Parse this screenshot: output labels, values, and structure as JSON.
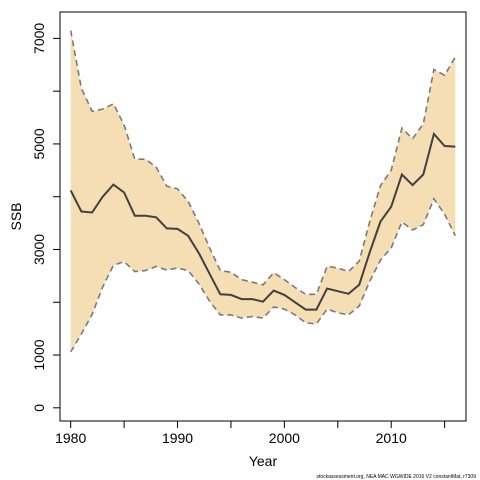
{
  "chart_data": {
    "type": "line",
    "xlabel": "Year",
    "ylabel": "SSB",
    "xlim": [
      1979,
      2017
    ],
    "ylim": [
      -250,
      7500
    ],
    "x_ticks": [
      1980,
      1990,
      2000,
      2010
    ],
    "x_minor_ticks": [
      1985,
      1995,
      2005,
      2015
    ],
    "y_ticks": [
      0,
      1000,
      3000,
      5000,
      7000
    ],
    "y_minor_ticks": [
      2000,
      4000,
      6000
    ],
    "grid": false,
    "credit": "stockassessment.org, NEA MAC WGWIDE 2016 V2 constantMat, r7309",
    "colors": {
      "band": "#f5deb3",
      "band_edge": "#7a7a7a",
      "line": "#404040"
    },
    "x": [
      1980,
      1981,
      1982,
      1983,
      1984,
      1985,
      1986,
      1987,
      1988,
      1989,
      1990,
      1991,
      1992,
      1993,
      1994,
      1995,
      1996,
      1997,
      1998,
      1999,
      2000,
      2001,
      2002,
      2003,
      2004,
      2005,
      2006,
      2007,
      2008,
      2009,
      2010,
      2011,
      2012,
      2013,
      2014,
      2015,
      2016
    ],
    "series": [
      {
        "role": "estimate",
        "values": [
          4120,
          3720,
          3700,
          4000,
          4230,
          4080,
          3640,
          3640,
          3610,
          3400,
          3390,
          3260,
          2930,
          2540,
          2150,
          2140,
          2060,
          2060,
          2010,
          2220,
          2140,
          2000,
          1860,
          1860,
          2260,
          2210,
          2160,
          2330,
          2950,
          3530,
          3810,
          4420,
          4220,
          4420,
          5190,
          4960,
          4950
        ]
      },
      {
        "role": "upper",
        "values": [
          7150,
          6050,
          5620,
          5660,
          5760,
          5360,
          4710,
          4710,
          4560,
          4200,
          4150,
          3910,
          3500,
          3030,
          2600,
          2570,
          2430,
          2380,
          2330,
          2560,
          2430,
          2280,
          2150,
          2150,
          2680,
          2650,
          2580,
          2780,
          3530,
          4210,
          4500,
          5300,
          5100,
          5380,
          6410,
          6300,
          6650
        ]
      },
      {
        "role": "lower",
        "values": [
          1060,
          1400,
          1770,
          2290,
          2700,
          2770,
          2580,
          2600,
          2680,
          2610,
          2650,
          2600,
          2350,
          2020,
          1760,
          1760,
          1700,
          1730,
          1700,
          1910,
          1870,
          1760,
          1610,
          1590,
          1870,
          1800,
          1760,
          1930,
          2400,
          2800,
          3030,
          3520,
          3370,
          3470,
          3960,
          3670,
          3260
        ]
      }
    ]
  }
}
